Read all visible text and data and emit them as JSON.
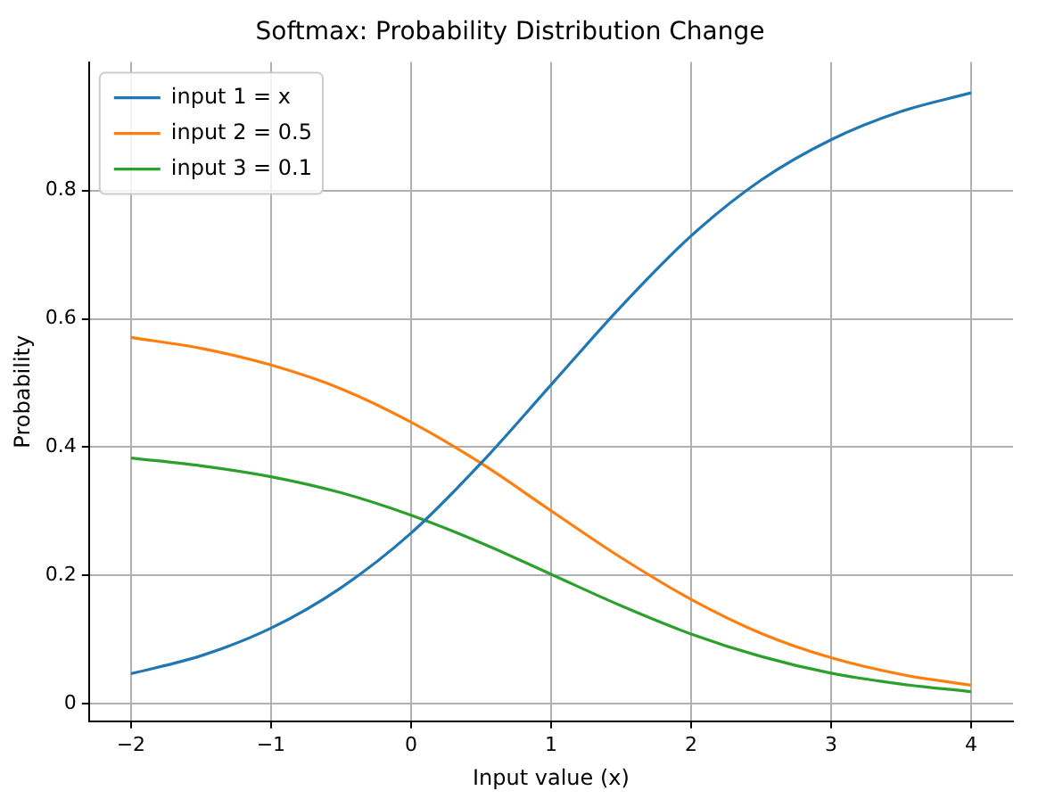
{
  "chart_data": {
    "type": "line",
    "title": "Softmax: Probability Distribution Change",
    "xlabel": "Input value (x)",
    "ylabel": "Probability",
    "x": [
      -2,
      -1.5,
      -1,
      -0.5,
      0,
      0.5,
      1,
      1.5,
      2,
      2.5,
      3,
      3.5,
      4
    ],
    "series": [
      {
        "name": "input 1 = x",
        "color": "#1f77b4",
        "values": [
          0.047,
          0.075,
          0.118,
          0.181,
          0.266,
          0.375,
          0.497,
          0.619,
          0.729,
          0.816,
          0.879,
          0.923,
          0.952
        ]
      },
      {
        "name": "input 2 = 0.5",
        "color": "#ff7f0e",
        "values": [
          0.571,
          0.554,
          0.528,
          0.491,
          0.439,
          0.375,
          0.301,
          0.228,
          0.163,
          0.11,
          0.072,
          0.046,
          0.029
        ]
      },
      {
        "name": "input 3 = 0.1",
        "color": "#2ca02c",
        "values": [
          0.383,
          0.371,
          0.354,
          0.329,
          0.294,
          0.251,
          0.202,
          0.153,
          0.109,
          0.074,
          0.048,
          0.031,
          0.019
        ]
      }
    ],
    "xlim": [
      -2.3,
      4.3
    ],
    "xticks": [
      -2,
      -1,
      0,
      1,
      2,
      3,
      4
    ],
    "ylim": [
      -0.027,
      1.0
    ],
    "yticks": [
      0,
      0.2,
      0.4,
      0.6,
      0.8
    ],
    "grid": true,
    "legend": "top left",
    "marker": "none",
    "line_style": "solid"
  }
}
